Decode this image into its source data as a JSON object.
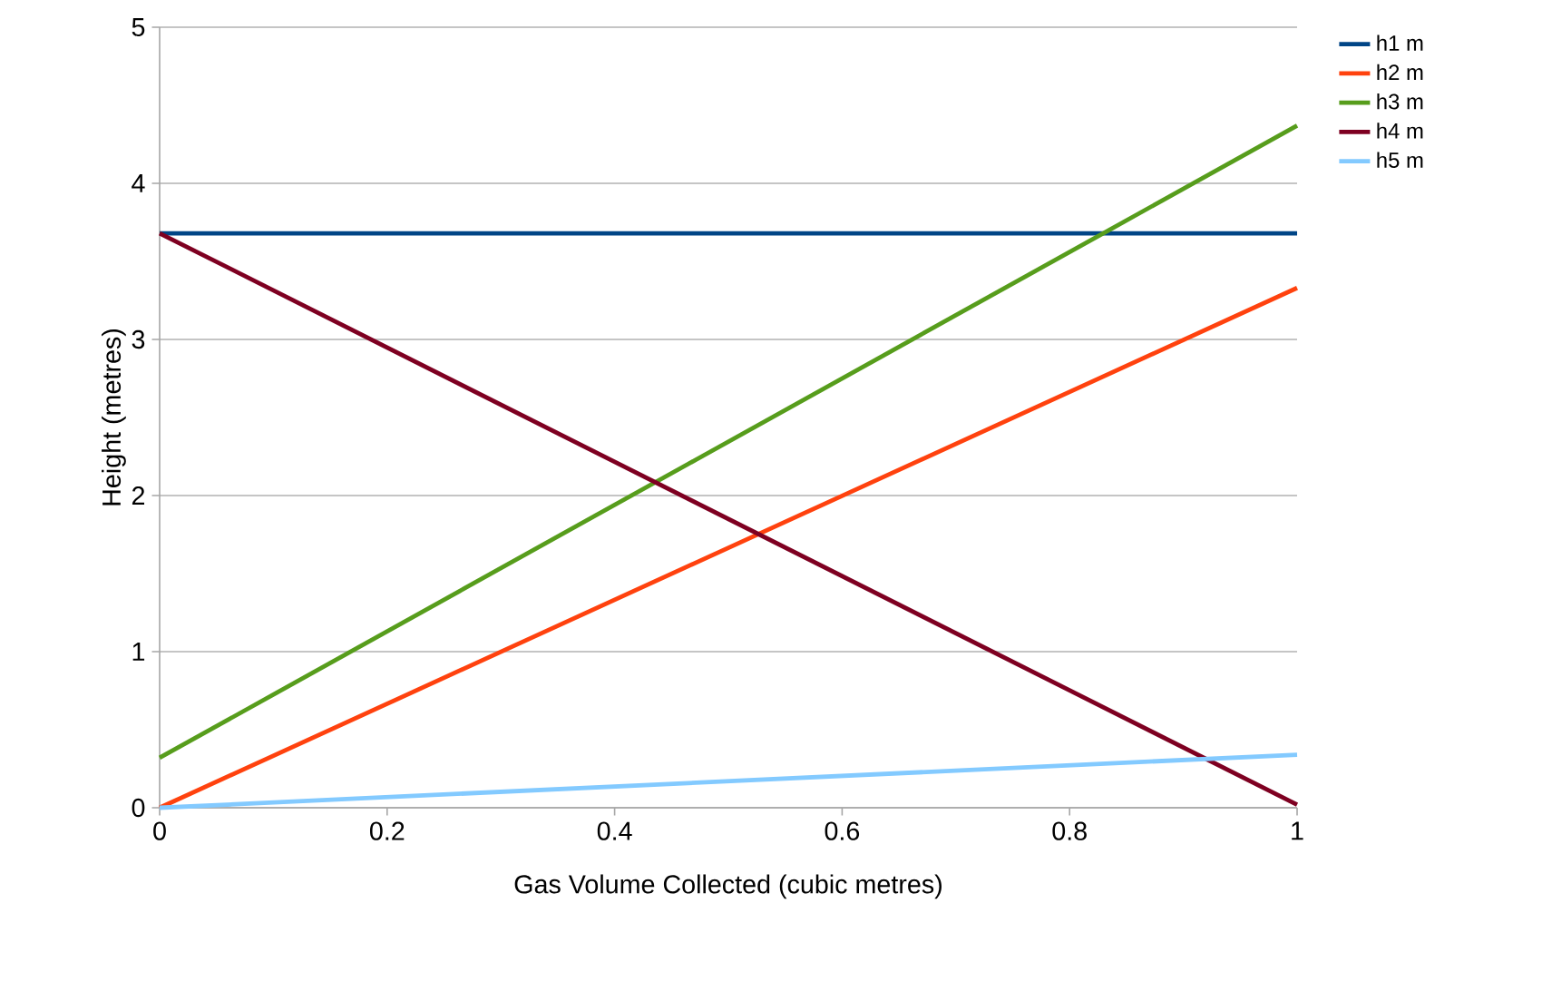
{
  "chart_data": {
    "type": "line",
    "xlabel": "Gas Volume Collected (cubic metres)",
    "ylabel": "Height (metres)",
    "x": [
      0,
      1
    ],
    "series": [
      {
        "name": "h1 m",
        "color": "#004586",
        "values": [
          3.68,
          3.68
        ]
      },
      {
        "name": "h2 m",
        "color": "#ff420e",
        "values": [
          0,
          3.33
        ]
      },
      {
        "name": "h3 m",
        "color": "#579d1c",
        "values": [
          0.32,
          4.37
        ]
      },
      {
        "name": "h4 m",
        "color": "#7e0021",
        "values": [
          3.68,
          0.02
        ]
      },
      {
        "name": "h5 m",
        "color": "#83caff",
        "values": [
          0,
          0.34
        ]
      }
    ],
    "xlim": [
      0,
      1
    ],
    "ylim": [
      0,
      5
    ],
    "xticks": [
      0,
      0.2,
      0.4,
      0.6,
      0.8,
      1
    ],
    "yticks": [
      0,
      1,
      2,
      3,
      4,
      5
    ],
    "grid": "y",
    "legend": "right",
    "marker": "none",
    "line_style": "solid"
  }
}
